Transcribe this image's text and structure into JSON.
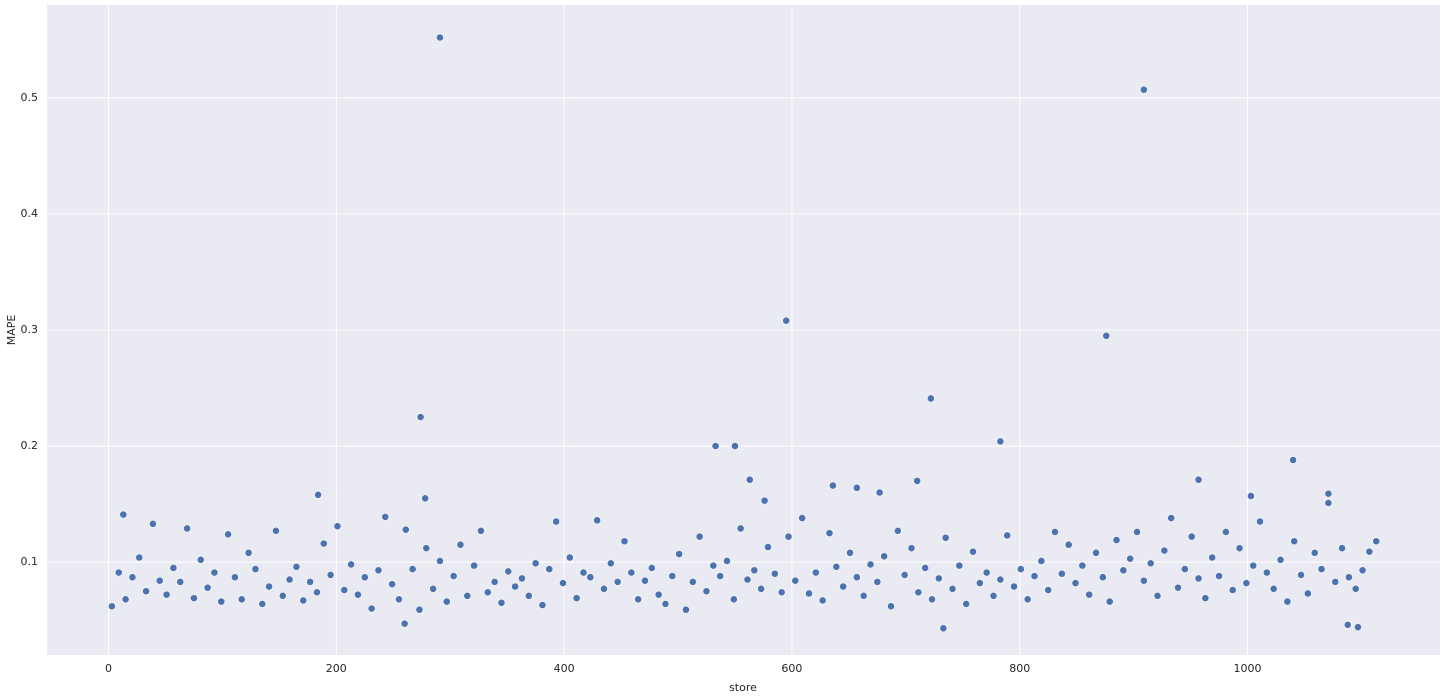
{
  "chart_data": {
    "type": "scatter",
    "x_label": "store",
    "y_label": "MAPE",
    "xlim": [
      -54,
      1169
    ],
    "ylim": [
      0.02,
      0.58
    ],
    "xticks": [
      0,
      200,
      400,
      600,
      800,
      1000
    ],
    "yticks": [
      0.1,
      0.2,
      0.3,
      0.4,
      0.5
    ],
    "grid": true,
    "color": "#4c72b0",
    "x": [
      3,
      9,
      15,
      21,
      27,
      33,
      39,
      45,
      51,
      57,
      63,
      69,
      75,
      81,
      87,
      93,
      99,
      105,
      111,
      117,
      123,
      129,
      135,
      141,
      147,
      153,
      159,
      165,
      171,
      177,
      183,
      189,
      195,
      201,
      207,
      213,
      219,
      225,
      231,
      237,
      243,
      249,
      255,
      261,
      267,
      273,
      279,
      285,
      291,
      297,
      303,
      309,
      315,
      321,
      327,
      333,
      339,
      345,
      351,
      357,
      363,
      369,
      375,
      381,
      387,
      393,
      399,
      405,
      411,
      417,
      423,
      429,
      435,
      441,
      447,
      453,
      459,
      465,
      471,
      477,
      483,
      489,
      495,
      501,
      507,
      513,
      519,
      525,
      531,
      537,
      543,
      549,
      555,
      561,
      567,
      573,
      579,
      585,
      591,
      597,
      603,
      609,
      615,
      621,
      627,
      633,
      639,
      645,
      651,
      657,
      663,
      669,
      675,
      681,
      687,
      693,
      699,
      705,
      711,
      717,
      723,
      729,
      735,
      741,
      747,
      753,
      759,
      765,
      771,
      777,
      783,
      789,
      795,
      801,
      807,
      813,
      819,
      825,
      831,
      837,
      843,
      849,
      855,
      861,
      867,
      873,
      879,
      885,
      891,
      897,
      903,
      909,
      915,
      921,
      927,
      933,
      939,
      945,
      951,
      957,
      963,
      969,
      975,
      981,
      987,
      993,
      999,
      1005,
      1011,
      1017,
      1023,
      1029,
      1035,
      1041,
      1047,
      1053,
      1059,
      1065,
      1071,
      1077,
      1083,
      1089,
      1095,
      1101,
      1107,
      1113,
      291,
      909,
      595,
      876,
      722,
      274,
      783,
      533,
      550,
      1040,
      563,
      957,
      710,
      636,
      657,
      677,
      184,
      1071,
      1003,
      278,
      576,
      13,
      260,
      733,
      1097,
      1088
    ],
    "values": [
      0.062,
      0.091,
      0.068,
      0.087,
      0.104,
      0.075,
      0.133,
      0.084,
      0.072,
      0.095,
      0.083,
      0.129,
      0.069,
      0.102,
      0.078,
      0.091,
      0.066,
      0.124,
      0.087,
      0.068,
      0.108,
      0.094,
      0.064,
      0.079,
      0.127,
      0.071,
      0.085,
      0.096,
      0.067,
      0.083,
      0.074,
      0.116,
      0.089,
      0.131,
      0.076,
      0.098,
      0.072,
      0.087,
      0.06,
      0.093,
      0.139,
      0.081,
      0.068,
      0.128,
      0.094,
      0.059,
      0.112,
      0.077,
      0.101,
      0.066,
      0.088,
      0.115,
      0.071,
      0.097,
      0.127,
      0.074,
      0.083,
      0.065,
      0.092,
      0.079,
      0.086,
      0.071,
      0.099,
      0.063,
      0.094,
      0.135,
      0.082,
      0.104,
      0.069,
      0.091,
      0.087,
      0.136,
      0.077,
      0.099,
      0.083,
      0.118,
      0.091,
      0.068,
      0.084,
      0.095,
      0.072,
      0.064,
      0.088,
      0.107,
      0.059,
      0.083,
      0.122,
      0.075,
      0.097,
      0.088,
      0.101,
      0.068,
      0.129,
      0.085,
      0.093,
      0.077,
      0.113,
      0.09,
      0.074,
      0.122,
      0.084,
      0.138,
      0.073,
      0.091,
      0.067,
      0.125,
      0.096,
      0.079,
      0.108,
      0.087,
      0.071,
      0.098,
      0.083,
      0.105,
      0.062,
      0.127,
      0.089,
      0.112,
      0.074,
      0.095,
      0.068,
      0.086,
      0.121,
      0.077,
      0.097,
      0.064,
      0.109,
      0.082,
      0.091,
      0.071,
      0.085,
      0.123,
      0.079,
      0.094,
      0.068,
      0.088,
      0.101,
      0.076,
      0.126,
      0.09,
      0.115,
      0.082,
      0.097,
      0.072,
      0.108,
      0.087,
      0.066,
      0.119,
      0.093,
      0.103,
      0.126,
      0.084,
      0.099,
      0.071,
      0.11,
      0.138,
      0.078,
      0.094,
      0.122,
      0.086,
      0.069,
      0.104,
      0.088,
      0.126,
      0.076,
      0.112,
      0.082,
      0.097,
      0.135,
      0.091,
      0.077,
      0.102,
      0.066,
      0.118,
      0.089,
      0.073,
      0.108,
      0.094,
      0.151,
      0.083,
      0.112,
      0.087,
      0.077,
      0.093,
      0.109,
      0.118,
      0.552,
      0.507,
      0.308,
      0.295,
      0.241,
      0.225,
      0.204,
      0.2,
      0.2,
      0.188,
      0.171,
      0.171,
      0.17,
      0.166,
      0.164,
      0.16,
      0.158,
      0.159,
      0.157,
      0.155,
      0.153,
      0.141,
      0.047,
      0.043,
      0.044,
      0.046
    ]
  }
}
